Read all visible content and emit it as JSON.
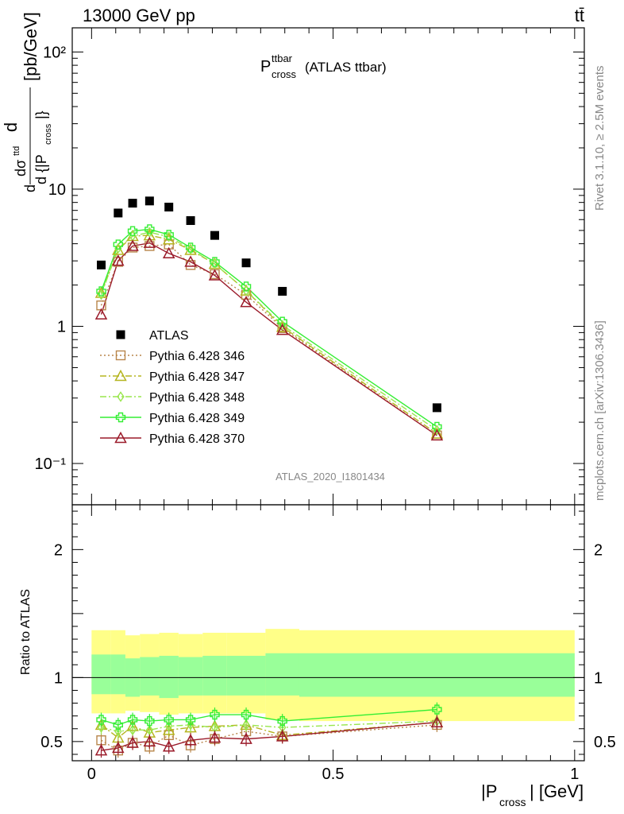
{
  "header": {
    "energy_label": "13000 GeV pp",
    "process_label": "tt̄",
    "title_main": "P",
    "title_sup": "ttbar",
    "title_sub": "cross",
    "title_suffix": "(ATLAS ttbar)",
    "analysis_id": "ATLAS_2020_I1801434",
    "side_label_top": "Rivet 3.1.10, ≥ 2.5M events",
    "side_label_bottom": "mcplots.cern.ch [arXiv:1306.3436]"
  },
  "chart_data": [
    {
      "type": "scatter",
      "panel": "main",
      "ylabel": "dσ/d{|P_cross|} [pb/GeV]",
      "yscale": "log",
      "ylim": [
        0.05,
        150
      ],
      "xlim": [
        -0.04,
        1.02
      ],
      "y_tick_labels": [
        "10⁻¹",
        "1",
        "10",
        "10²"
      ],
      "x": [
        0.02,
        0.055,
        0.085,
        0.12,
        0.16,
        0.205,
        0.255,
        0.32,
        0.395,
        0.715
      ],
      "series": [
        {
          "name": "ATLAS",
          "marker": "filled-square",
          "color": "#000000",
          "values": [
            2.8,
            6.7,
            7.9,
            8.2,
            7.4,
            5.9,
            4.6,
            2.9,
            1.8,
            0.255
          ]
        },
        {
          "name": "Pythia 6.428 346",
          "marker": "open-square",
          "line": "dotted",
          "color": "#b8864b",
          "values": [
            1.42,
            2.95,
            3.75,
            3.85,
            3.95,
            2.8,
            2.4,
            1.7,
            0.97,
            0.16
          ]
        },
        {
          "name": "Pythia 6.428 347",
          "marker": "open-triangle",
          "line": "dashdot",
          "color": "#b5b520",
          "values": [
            1.75,
            3.6,
            4.55,
            4.6,
            4.3,
            3.6,
            2.85,
            1.82,
            0.99,
            0.165
          ]
        },
        {
          "name": "Pythia 6.428 348",
          "marker": "open-diamond",
          "line": "dashdot",
          "color": "#99e64d",
          "values": [
            1.7,
            3.7,
            4.55,
            4.85,
            4.5,
            3.65,
            2.85,
            1.82,
            1.02,
            0.175
          ]
        },
        {
          "name": "Pythia 6.428 349",
          "marker": "cross",
          "line": "solid",
          "color": "#33ee33",
          "values": [
            1.8,
            3.95,
            4.95,
            5.1,
            4.65,
            3.75,
            2.95,
            1.95,
            1.08,
            0.185
          ]
        },
        {
          "name": "Pythia 6.428 370",
          "marker": "open-triangle",
          "line": "solid",
          "color": "#9b1b2a",
          "values": [
            1.22,
            3.0,
            3.85,
            4.05,
            3.4,
            2.95,
            2.35,
            1.5,
            0.94,
            0.16
          ]
        }
      ]
    },
    {
      "type": "line",
      "panel": "ratio",
      "ylabel": "Ratio to ATLAS",
      "xlabel": "|P_cross| [GeV]",
      "ylim": [
        0.35,
        2.35
      ],
      "xlim": [
        -0.04,
        1.02
      ],
      "x_tick_labels": [
        "0",
        "0.5",
        "1"
      ],
      "y_tick_labels": [
        "0.5",
        "1",
        "2"
      ],
      "bin_edges": [
        0.0,
        0.04,
        0.07,
        0.1,
        0.14,
        0.18,
        0.23,
        0.28,
        0.36,
        0.43,
        1.0
      ],
      "band_outer": {
        "color": "#ffff88",
        "lo": [
          0.72,
          0.72,
          0.74,
          0.73,
          0.71,
          0.72,
          0.72,
          0.72,
          0.67,
          0.66
        ],
        "hi": [
          1.37,
          1.37,
          1.33,
          1.34,
          1.35,
          1.34,
          1.35,
          1.35,
          1.38,
          1.37
        ]
      },
      "band_inner": {
        "color": "#99ff99",
        "lo": [
          0.87,
          0.87,
          0.85,
          0.86,
          0.84,
          0.86,
          0.86,
          0.86,
          0.86,
          0.85
        ],
        "hi": [
          1.18,
          1.18,
          1.15,
          1.16,
          1.17,
          1.16,
          1.17,
          1.17,
          1.19,
          1.19
        ]
      },
      "x": [
        0.02,
        0.055,
        0.085,
        0.12,
        0.16,
        0.205,
        0.255,
        0.32,
        0.395,
        0.715
      ],
      "series": [
        {
          "name": "Pythia 6.428 346",
          "color": "#b8864b",
          "values": [
            0.51,
            0.43,
            0.49,
            0.46,
            0.55,
            0.47,
            0.52,
            0.58,
            0.54,
            0.63
          ]
        },
        {
          "name": "Pythia 6.428 347",
          "color": "#b5b520",
          "values": [
            0.63,
            0.53,
            0.62,
            0.57,
            0.59,
            0.61,
            0.62,
            0.63,
            0.55,
            0.65
          ]
        },
        {
          "name": "Pythia 6.428 348",
          "color": "#99e64d",
          "values": [
            0.61,
            0.58,
            0.59,
            0.59,
            0.62,
            0.63,
            0.61,
            0.63,
            0.61,
            0.66
          ]
        },
        {
          "name": "Pythia 6.428 349",
          "color": "#33ee33",
          "values": [
            0.67,
            0.63,
            0.67,
            0.66,
            0.67,
            0.67,
            0.71,
            0.71,
            0.66,
            0.75
          ]
        },
        {
          "name": "Pythia 6.428 370",
          "color": "#9b1b2a",
          "values": [
            0.43,
            0.45,
            0.49,
            0.5,
            0.46,
            0.51,
            0.53,
            0.52,
            0.54,
            0.65
          ]
        }
      ]
    }
  ]
}
